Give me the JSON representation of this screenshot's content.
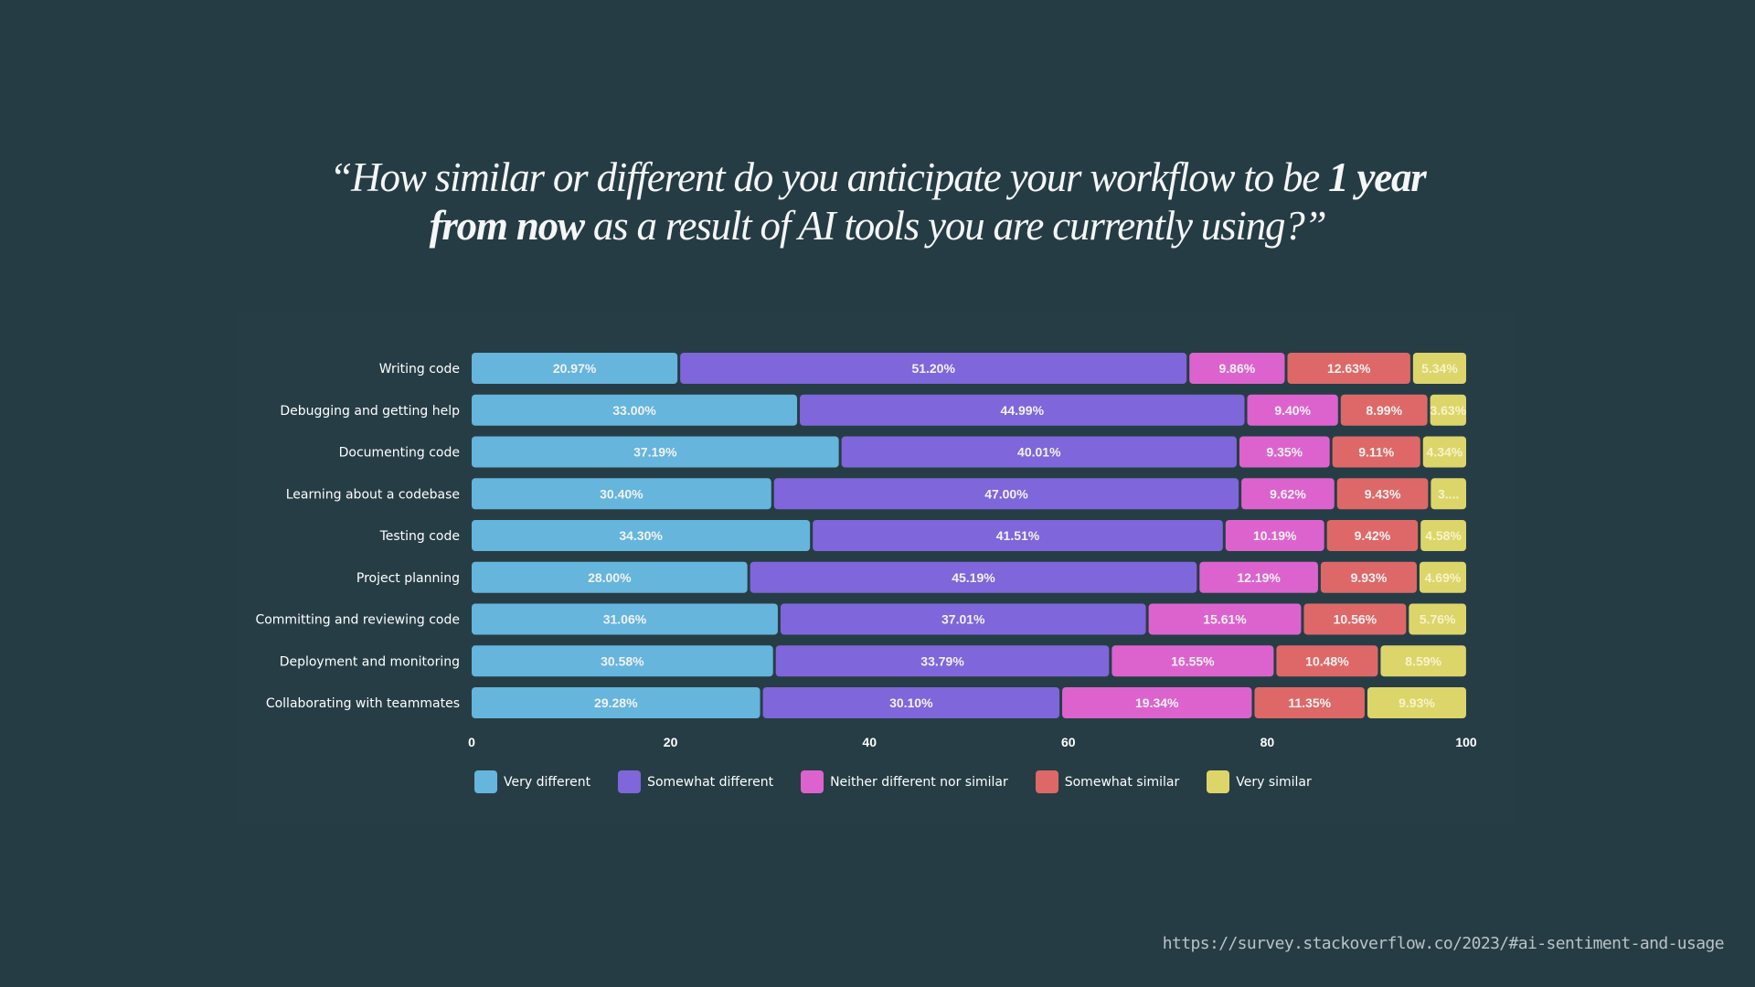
{
  "title": {
    "line1_pre": "“How similar or different do you anticipate your workflow to be ",
    "line1_bold": "1 year",
    "line2_bold": "from now",
    "line2_post": " as a result of AI tools you are currently using?”"
  },
  "colors": {
    "background": "#263c44",
    "very_different": "#65b5dc",
    "somewhat_different": "#7f66da",
    "neither": "#dc63cd",
    "somewhat_similar": "#de6868",
    "very_similar": "#dcd56a"
  },
  "chart_data": {
    "type": "bar",
    "orientation": "horizontal",
    "stacked": true,
    "title": "“How similar or different do you anticipate your workflow to be 1 year from now as a result of AI tools you are currently using?”",
    "xlabel": "",
    "ylabel": "",
    "xlim": [
      0,
      100
    ],
    "xticks": [
      "0",
      "20",
      "40",
      "60",
      "80",
      "100"
    ],
    "grid": false,
    "legend_position": "bottom",
    "categories": [
      "Writing code",
      "Debugging and getting help",
      "Documenting code",
      "Learning about a codebase",
      "Testing code",
      "Project planning",
      "Committing and reviewing code",
      "Deployment and monitoring",
      "Collaborating with teammates"
    ],
    "series": [
      {
        "name": "Very different",
        "color": "#65b5dc",
        "values": [
          20.97,
          33.0,
          37.19,
          30.4,
          34.3,
          28.0,
          31.06,
          30.58,
          29.28
        ],
        "labels": [
          "20.97%",
          "33.00%",
          "37.19%",
          "30.40%",
          "34.30%",
          "28.00%",
          "31.06%",
          "30.58%",
          "29.28%"
        ]
      },
      {
        "name": "Somewhat different",
        "color": "#7f66da",
        "values": [
          51.2,
          44.99,
          40.01,
          47.0,
          41.51,
          45.19,
          37.01,
          33.79,
          30.1
        ],
        "labels": [
          "51.20%",
          "44.99%",
          "40.01%",
          "47.00%",
          "41.51%",
          "45.19%",
          "37.01%",
          "33.79%",
          "30.10%"
        ]
      },
      {
        "name": "Neither different nor similar",
        "color": "#dc63cd",
        "values": [
          9.86,
          9.4,
          9.35,
          9.62,
          10.19,
          12.19,
          15.61,
          16.55,
          19.34
        ],
        "labels": [
          "9.86%",
          "9.40%",
          "9.35%",
          "9.62%",
          "10.19%",
          "12.19%",
          "15.61%",
          "16.55%",
          "19.34%"
        ]
      },
      {
        "name": "Somewhat similar",
        "color": "#de6868",
        "values": [
          12.63,
          8.99,
          9.11,
          9.43,
          9.42,
          9.93,
          10.56,
          10.48,
          11.35
        ],
        "labels": [
          "12.63%",
          "8.99%",
          "9.11%",
          "9.43%",
          "9.42%",
          "9.93%",
          "10.56%",
          "10.48%",
          "11.35%"
        ]
      },
      {
        "name": "Very similar",
        "color": "#dcd56a",
        "values": [
          5.34,
          3.63,
          4.34,
          3.55,
          4.58,
          4.69,
          5.76,
          8.59,
          9.93
        ],
        "labels": [
          "5.34%",
          "3.63%",
          "4.34%",
          "3....",
          "4.58%",
          "4.69%",
          "5.76%",
          "8.59%",
          "9.93%"
        ]
      }
    ]
  },
  "legend": {
    "items": [
      {
        "label": "Very different",
        "color": "#65b5dc"
      },
      {
        "label": "Somewhat different",
        "color": "#7f66da"
      },
      {
        "label": "Neither different nor similar",
        "color": "#dc63cd"
      },
      {
        "label": "Somewhat similar",
        "color": "#de6868"
      },
      {
        "label": "Very similar",
        "color": "#dcd56a"
      }
    ]
  },
  "footer": {
    "source_url": "https://survey.stackoverflow.co/2023/#ai-sentiment-and-usage"
  }
}
